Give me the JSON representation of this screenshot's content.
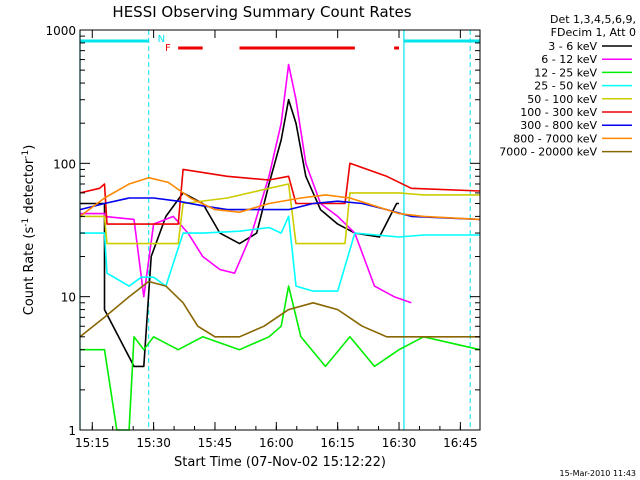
{
  "chart_data": {
    "type": "line",
    "title": "HESSI Observing Summary Count Rates",
    "xlabel": "Start Time (07-Nov-02 15:12:22)",
    "ylabel": "Count Rate (s-1 detector-1)",
    "ylabel_parts": [
      "Count Rate (s",
      "-1",
      " detector",
      "-1",
      ")"
    ],
    "y_scale": "log",
    "ylim": [
      1,
      1000
    ],
    "xlim_minutes": [
      15.2,
      16.83
    ],
    "x_unit": "time since 15:00 in hours",
    "xticks": [
      {
        "label": "15:15",
        "t": 15.25
      },
      {
        "label": "15:30",
        "t": 15.5
      },
      {
        "label": "15:45",
        "t": 15.75
      },
      {
        "label": "16:00",
        "t": 16.0
      },
      {
        "label": "16:15",
        "t": 16.25
      },
      {
        "label": "16:30",
        "t": 16.5
      },
      {
        "label": "16:45",
        "t": 16.75
      }
    ],
    "yticks": [
      {
        "label": "1",
        "v": 1
      },
      {
        "label": "10",
        "v": 10
      },
      {
        "label": "100",
        "v": 100
      },
      {
        "label": "1000",
        "v": 1000
      }
    ],
    "legend_header": [
      "Det 1,3,4,5,6,9,",
      "FDecim 1, Att 0"
    ],
    "series": [
      {
        "name": "3 - 6 keV",
        "color": "#000000",
        "points": [
          [
            15.2,
            50
          ],
          [
            15.3,
            50
          ],
          [
            15.3,
            8
          ],
          [
            15.42,
            3
          ],
          [
            15.46,
            3
          ],
          [
            15.49,
            20
          ],
          [
            15.55,
            40
          ],
          [
            15.62,
            60
          ],
          [
            15.7,
            50
          ],
          [
            15.77,
            30
          ],
          [
            15.85,
            25
          ],
          [
            15.92,
            30
          ],
          [
            15.97,
            70
          ],
          [
            16.02,
            150
          ],
          [
            16.05,
            300
          ],
          [
            16.08,
            200
          ],
          [
            16.12,
            80
          ],
          [
            16.18,
            45
          ],
          [
            16.25,
            35
          ],
          [
            16.32,
            30
          ],
          [
            16.42,
            28
          ],
          [
            16.49,
            50
          ],
          [
            16.5,
            50
          ]
        ]
      },
      {
        "name": "6 - 12 keV",
        "color": "#ff00ff",
        "points": [
          [
            15.2,
            42
          ],
          [
            15.3,
            42
          ],
          [
            15.3,
            40
          ],
          [
            15.42,
            38
          ],
          [
            15.46,
            10
          ],
          [
            15.5,
            35
          ],
          [
            15.58,
            40
          ],
          [
            15.64,
            30
          ],
          [
            15.7,
            20
          ],
          [
            15.77,
            16
          ],
          [
            15.83,
            15
          ],
          [
            15.9,
            30
          ],
          [
            15.97,
            80
          ],
          [
            16.02,
            200
          ],
          [
            16.05,
            550
          ],
          [
            16.08,
            300
          ],
          [
            16.12,
            100
          ],
          [
            16.18,
            50
          ],
          [
            16.25,
            40
          ],
          [
            16.32,
            30
          ],
          [
            16.4,
            12
          ],
          [
            16.48,
            10
          ],
          [
            16.55,
            9
          ]
        ]
      },
      {
        "name": "12 - 25 keV",
        "color": "#00ee00",
        "points": [
          [
            15.2,
            4
          ],
          [
            15.3,
            4
          ],
          [
            15.35,
            1
          ],
          [
            15.4,
            1
          ],
          [
            15.42,
            5
          ],
          [
            15.46,
            4
          ],
          [
            15.5,
            5
          ],
          [
            15.6,
            4
          ],
          [
            15.7,
            5
          ],
          [
            15.85,
            4
          ],
          [
            15.97,
            5
          ],
          [
            16.02,
            6
          ],
          [
            16.05,
            12
          ],
          [
            16.1,
            5
          ],
          [
            16.2,
            3
          ],
          [
            16.3,
            5
          ],
          [
            16.4,
            3
          ],
          [
            16.5,
            4
          ],
          [
            16.6,
            5
          ],
          [
            16.83,
            4
          ]
        ]
      },
      {
        "name": "25 - 50 keV",
        "color": "#00ffff",
        "points": [
          [
            15.2,
            30
          ],
          [
            15.3,
            30
          ],
          [
            15.31,
            15
          ],
          [
            15.4,
            12
          ],
          [
            15.45,
            14
          ],
          [
            15.5,
            14
          ],
          [
            15.55,
            12
          ],
          [
            15.62,
            30
          ],
          [
            15.7,
            30
          ],
          [
            15.85,
            31
          ],
          [
            15.97,
            33
          ],
          [
            16.02,
            30
          ],
          [
            16.05,
            40
          ],
          [
            16.08,
            12
          ],
          [
            16.15,
            11
          ],
          [
            16.25,
            11
          ],
          [
            16.32,
            30
          ],
          [
            16.5,
            28
          ],
          [
            16.6,
            29
          ],
          [
            16.83,
            29
          ]
        ]
      },
      {
        "name": "50 - 100 keV",
        "color": "#cccc00",
        "points": [
          [
            15.2,
            40
          ],
          [
            15.3,
            40
          ],
          [
            15.31,
            25
          ],
          [
            15.5,
            25
          ],
          [
            15.6,
            25
          ],
          [
            15.62,
            50
          ],
          [
            15.8,
            55
          ],
          [
            15.97,
            65
          ],
          [
            16.05,
            70
          ],
          [
            16.08,
            25
          ],
          [
            16.2,
            25
          ],
          [
            16.28,
            25
          ],
          [
            16.3,
            60
          ],
          [
            16.5,
            60
          ],
          [
            16.6,
            58
          ],
          [
            16.83,
            58
          ]
        ]
      },
      {
        "name": "100 - 300 keV",
        "color": "#ee0000",
        "points": [
          [
            15.2,
            60
          ],
          [
            15.28,
            65
          ],
          [
            15.3,
            70
          ],
          [
            15.31,
            35
          ],
          [
            15.5,
            35
          ],
          [
            15.6,
            35
          ],
          [
            15.62,
            90
          ],
          [
            15.8,
            80
          ],
          [
            15.97,
            75
          ],
          [
            16.05,
            80
          ],
          [
            16.08,
            50
          ],
          [
            16.2,
            50
          ],
          [
            16.28,
            50
          ],
          [
            16.3,
            100
          ],
          [
            16.45,
            80
          ],
          [
            16.55,
            65
          ],
          [
            16.83,
            62
          ]
        ]
      },
      {
        "name": "300 - 800 keV",
        "color": "#0000ee",
        "points": [
          [
            15.2,
            45
          ],
          [
            15.3,
            50
          ],
          [
            15.4,
            55
          ],
          [
            15.5,
            55
          ],
          [
            15.6,
            52
          ],
          [
            15.7,
            48
          ],
          [
            15.8,
            45
          ],
          [
            15.97,
            45
          ],
          [
            16.05,
            45
          ],
          [
            16.15,
            50
          ],
          [
            16.25,
            52
          ],
          [
            16.35,
            50
          ],
          [
            16.45,
            45
          ],
          [
            16.55,
            40
          ],
          [
            16.83,
            38
          ]
        ]
      },
      {
        "name": "800 - 7000 keV",
        "color": "#ff8800",
        "points": [
          [
            15.2,
            40
          ],
          [
            15.3,
            55
          ],
          [
            15.4,
            70
          ],
          [
            15.48,
            78
          ],
          [
            15.56,
            72
          ],
          [
            15.65,
            55
          ],
          [
            15.75,
            45
          ],
          [
            15.85,
            43
          ],
          [
            15.97,
            50
          ],
          [
            16.1,
            55
          ],
          [
            16.2,
            58
          ],
          [
            16.3,
            55
          ],
          [
            16.4,
            48
          ],
          [
            16.5,
            42
          ],
          [
            16.6,
            40
          ],
          [
            16.83,
            38
          ]
        ]
      },
      {
        "name": "7000 - 20000 keV",
        "color": "#886600",
        "points": [
          [
            15.2,
            5
          ],
          [
            15.3,
            7
          ],
          [
            15.4,
            10
          ],
          [
            15.48,
            13
          ],
          [
            15.55,
            12
          ],
          [
            15.62,
            9
          ],
          [
            15.68,
            6
          ],
          [
            15.75,
            5
          ],
          [
            15.85,
            5
          ],
          [
            15.95,
            6
          ],
          [
            16.05,
            8
          ],
          [
            16.15,
            9
          ],
          [
            16.25,
            8
          ],
          [
            16.35,
            6
          ],
          [
            16.45,
            5
          ],
          [
            16.55,
            5
          ],
          [
            16.83,
            5
          ]
        ]
      }
    ],
    "flags": {
      "night_label": "N",
      "flare_label": "F",
      "night_color": "#00e5ee",
      "flare_color": "#ee0000",
      "night_intervals": [
        [
          15.2,
          15.48
        ],
        [
          16.52,
          16.83
        ]
      ],
      "flare_intervals": [
        [
          15.6,
          15.7
        ],
        [
          15.85,
          16.32
        ],
        [
          16.48,
          16.5
        ]
      ]
    },
    "markers": {
      "solid_lines_t": [
        15.2,
        16.52
      ],
      "dashed_lines_t": [
        15.48,
        16.79
      ],
      "color": "#00e5ee"
    }
  },
  "footer_timestamp": "15-Mar-2010 11:43"
}
